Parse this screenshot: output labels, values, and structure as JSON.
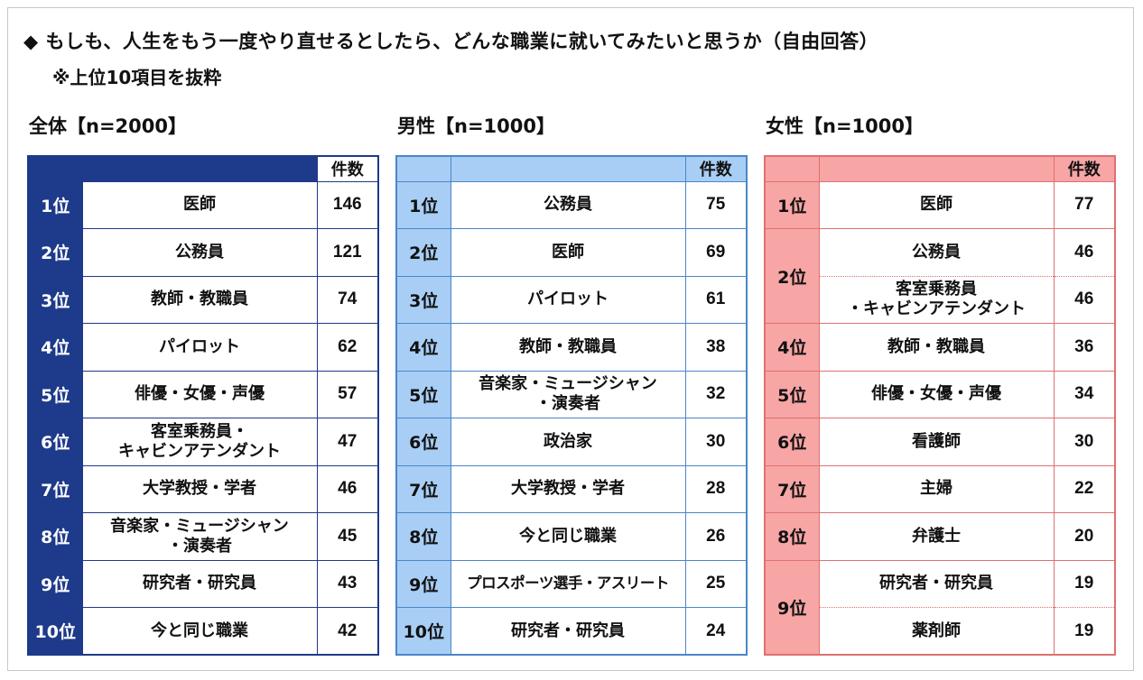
{
  "title": "◆ もしも、人生をもう一度やり直せるとしたら、どんな職業に就いてみたいと思うか（自由回答）",
  "subtitle": "※上位10項目を抜粋",
  "count_header": "件数",
  "all": {
    "label": "全体【n=2000】",
    "rows": [
      {
        "rank": "1位",
        "job": "医師",
        "count": "146"
      },
      {
        "rank": "2位",
        "job": "公務員",
        "count": "121"
      },
      {
        "rank": "3位",
        "job": "教師・教職員",
        "count": "74"
      },
      {
        "rank": "4位",
        "job": "パイロット",
        "count": "62"
      },
      {
        "rank": "5位",
        "job": "俳優・女優・声優",
        "count": "57"
      },
      {
        "rank": "6位",
        "job": "客室乗務員・\nキャビンアテンダント",
        "count": "47"
      },
      {
        "rank": "7位",
        "job": "大学教授・学者",
        "count": "46"
      },
      {
        "rank": "8位",
        "job": "音楽家・ミュージシャン\n・演奏者",
        "count": "45"
      },
      {
        "rank": "9位",
        "job": "研究者・研究員",
        "count": "43"
      },
      {
        "rank": "10位",
        "job": "今と同じ職業",
        "count": "42"
      }
    ]
  },
  "male": {
    "label": "男性【n=1000】",
    "rows": [
      {
        "rank": "1位",
        "job": "公務員",
        "count": "75"
      },
      {
        "rank": "2位",
        "job": "医師",
        "count": "69"
      },
      {
        "rank": "3位",
        "job": "パイロット",
        "count": "61"
      },
      {
        "rank": "4位",
        "job": "教師・教職員",
        "count": "38"
      },
      {
        "rank": "5位",
        "job": "音楽家・ミュージシャン\n・演奏者",
        "count": "32"
      },
      {
        "rank": "6位",
        "job": "政治家",
        "count": "30"
      },
      {
        "rank": "7位",
        "job": "大学教授・学者",
        "count": "28"
      },
      {
        "rank": "8位",
        "job": "今と同じ職業",
        "count": "26"
      },
      {
        "rank": "9位",
        "job": "プロスポーツ選手・アスリート",
        "count": "25"
      },
      {
        "rank": "10位",
        "job": "研究者・研究員",
        "count": "24"
      }
    ]
  },
  "female": {
    "label": "女性【n=1000】",
    "rank2": "2位",
    "rank9": "9位",
    "rows": [
      {
        "rank": "1位",
        "job": "医師",
        "count": "77"
      },
      {
        "job": "公務員",
        "count": "46"
      },
      {
        "job": "客室乗務員\n・キャビンアテンダント",
        "count": "46"
      },
      {
        "rank": "4位",
        "job": "教師・教職員",
        "count": "36"
      },
      {
        "rank": "5位",
        "job": "俳優・女優・声優",
        "count": "34"
      },
      {
        "rank": "6位",
        "job": "看護師",
        "count": "30"
      },
      {
        "rank": "7位",
        "job": "主婦",
        "count": "22"
      },
      {
        "rank": "8位",
        "job": "弁護士",
        "count": "20"
      },
      {
        "job": "研究者・研究員",
        "count": "19"
      },
      {
        "job": "薬剤師",
        "count": "19"
      }
    ]
  }
}
